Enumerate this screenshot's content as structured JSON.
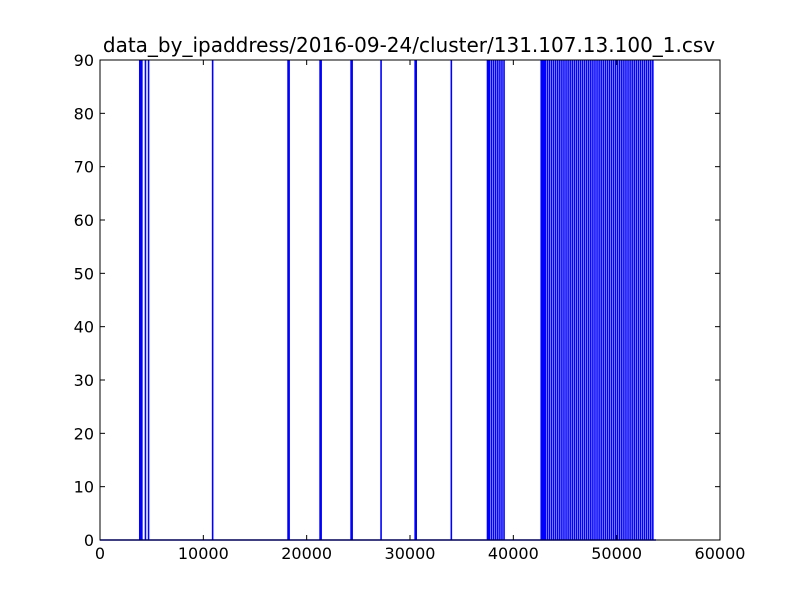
{
  "chart_data": {
    "type": "line",
    "title": "data_by_ipaddress/2016-09-24/cluster/131.107.13.100_1.csv",
    "xlabel": "",
    "ylabel": "",
    "xlim": [
      0,
      60000
    ],
    "ylim": [
      0,
      90
    ],
    "x_ticks": [
      0,
      10000,
      20000,
      30000,
      40000,
      50000,
      60000
    ],
    "y_ticks": [
      0,
      10,
      20,
      30,
      40,
      50,
      60,
      70,
      80,
      90
    ],
    "grid": false,
    "line_color": "#0000ff",
    "baseline": 0,
    "spike_value": 90,
    "series_end_x": 53800,
    "spikes_x": [
      3850,
      3950,
      4050,
      4400,
      4700,
      10900,
      18200,
      18300,
      21300,
      21400,
      24300,
      24400,
      27200,
      30500,
      30600,
      34000,
      37500,
      37600,
      37700,
      37900,
      38100,
      38300,
      38500,
      38700,
      38900,
      39100,
      42700,
      42800,
      42900,
      43000,
      43100,
      43300,
      43500,
      43700,
      43900,
      44100,
      44300,
      44500,
      44700,
      44900,
      45100,
      45300,
      45500,
      45700,
      45900,
      46100,
      46300,
      46500,
      46700,
      46900,
      47100,
      47300,
      47500,
      47700,
      47900,
      48100,
      48300,
      48500,
      48700,
      48900,
      49100,
      49300,
      49500,
      49700,
      49900,
      50100,
      50300,
      50500,
      50700,
      50900,
      51100,
      51300,
      51500,
      51700,
      51900,
      52100,
      52300,
      52500,
      52700,
      52900,
      53100,
      53300,
      53500
    ]
  }
}
